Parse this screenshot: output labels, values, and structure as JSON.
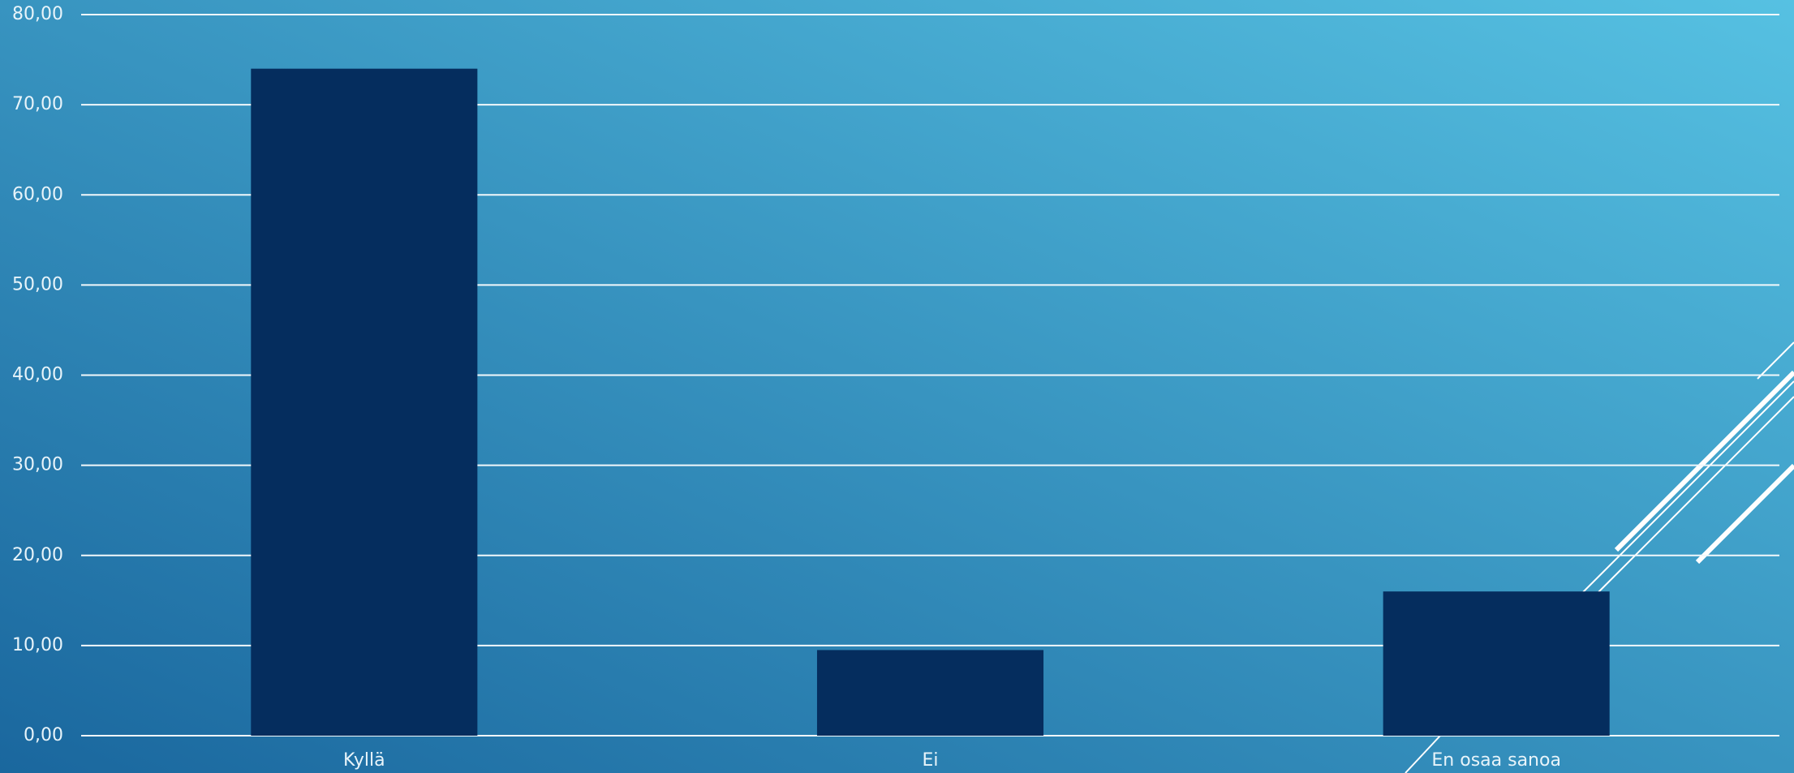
{
  "chart_data": {
    "type": "bar",
    "categories": [
      "Kyllä",
      "Ei",
      "En osaa sanoa"
    ],
    "values": [
      74.0,
      9.5,
      16.0
    ],
    "color": "#052d5e",
    "ylim": [
      0,
      80
    ],
    "yticks": [
      {
        "value": 0,
        "label": "0,00"
      },
      {
        "value": 10,
        "label": "10,00"
      },
      {
        "value": 20,
        "label": "20,00"
      },
      {
        "value": 30,
        "label": "30,00"
      },
      {
        "value": 40,
        "label": "40,00"
      },
      {
        "value": 50,
        "label": "50,00"
      },
      {
        "value": 60,
        "label": "60,00"
      },
      {
        "value": 70,
        "label": "70,00"
      },
      {
        "value": 80,
        "label": "80,00"
      }
    ],
    "grid": true
  }
}
